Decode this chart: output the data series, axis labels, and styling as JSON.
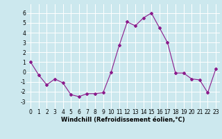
{
  "x": [
    0,
    1,
    2,
    3,
    4,
    5,
    6,
    7,
    8,
    9,
    10,
    11,
    12,
    13,
    14,
    15,
    16,
    17,
    18,
    19,
    20,
    21,
    22,
    23
  ],
  "y": [
    1,
    -0.3,
    -1.3,
    -0.7,
    -1.1,
    -2.3,
    -2.5,
    -2.2,
    -2.2,
    -2.1,
    0.0,
    2.7,
    5.1,
    4.7,
    5.5,
    6.0,
    4.5,
    3.0,
    -0.1,
    -0.1,
    -0.7,
    -0.8,
    -2.1,
    0.3
  ],
  "line_color": "#8b1a8b",
  "marker": "D",
  "markersize": 2.0,
  "linewidth": 0.8,
  "xlabel": "Windchill (Refroidissement éolien,°C)",
  "xlim": [
    -0.5,
    23.5
  ],
  "ylim": [
    -3.7,
    6.9
  ],
  "yticks": [
    -3,
    -2,
    -1,
    0,
    1,
    2,
    3,
    4,
    5,
    6
  ],
  "xticks": [
    0,
    1,
    2,
    3,
    4,
    5,
    6,
    7,
    8,
    9,
    10,
    11,
    12,
    13,
    14,
    15,
    16,
    17,
    18,
    19,
    20,
    21,
    22,
    23
  ],
  "bg_color": "#cce8ee",
  "grid_color": "#b0d8e0",
  "tick_fontsize": 5.5,
  "xlabel_fontsize": 6.0
}
